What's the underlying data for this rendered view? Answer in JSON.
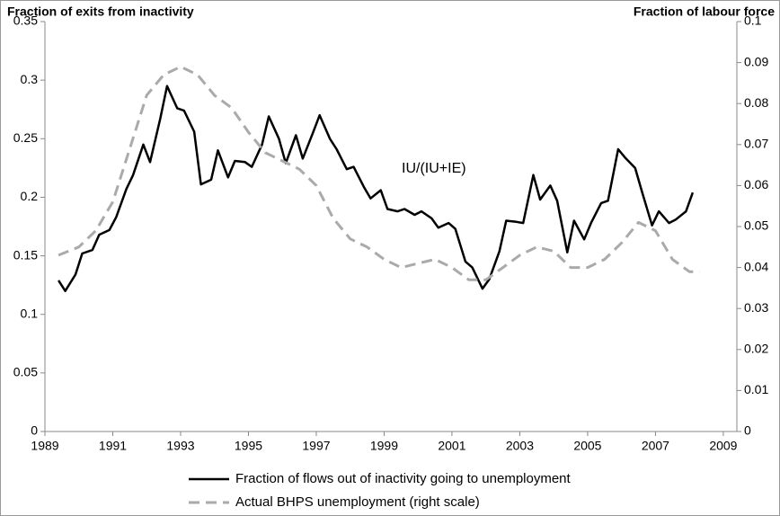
{
  "chart_data": {
    "type": "line",
    "y_title": "Fraction of exits from inactivity",
    "y2_title": "Fraction of labour force",
    "annotation": "IU/(IU+IE)",
    "xlim": [
      1989,
      2009.4
    ],
    "xticks": [
      1989,
      1991,
      1993,
      1995,
      1997,
      1999,
      2001,
      2003,
      2005,
      2007,
      2009
    ],
    "ylim": [
      0,
      0.35
    ],
    "yticks": [
      0,
      0.05,
      0.1,
      0.15,
      0.2,
      0.25,
      0.3,
      0.35
    ],
    "y2lim": [
      0,
      0.1
    ],
    "y2ticks": [
      0,
      0.01,
      0.02,
      0.03,
      0.04,
      0.05,
      0.06,
      0.07,
      0.08,
      0.09,
      0.1
    ],
    "grid": false,
    "legend": "bottom",
    "series": [
      {
        "name": "Fraction of flows out of inactivity going to unemployment",
        "color": "#000000",
        "dash": false,
        "x": [
          1989.4,
          1989.6,
          1989.9,
          1990.1,
          1990.4,
          1990.6,
          1990.9,
          1991.1,
          1991.4,
          1991.6,
          1991.9,
          1992.1,
          1992.4,
          1992.6,
          1992.9,
          1993.1,
          1993.4,
          1993.6,
          1993.9,
          1994.1,
          1994.4,
          1994.6,
          1994.9,
          1995.1,
          1995.4,
          1995.6,
          1995.9,
          1996.1,
          1996.4,
          1996.6,
          1996.9,
          1997.1,
          1997.4,
          1997.6,
          1997.9,
          1998.1,
          1998.4,
          1998.6,
          1998.9,
          1999.1,
          1999.4,
          1999.6,
          1999.9,
          2000.1,
          2000.4,
          2000.6,
          2000.9,
          2001.1,
          2001.4,
          2001.6,
          2001.9,
          2002.1,
          2002.4,
          2002.6,
          2002.9,
          2003.1,
          2003.4,
          2003.6,
          2003.9,
          2004.1,
          2004.4,
          2004.6,
          2004.9,
          2005.1,
          2005.4,
          2005.6,
          2005.9,
          2006.1,
          2006.4,
          2006.6,
          2006.9,
          2007.1,
          2007.4,
          2007.6,
          2007.9,
          2008.1
        ],
        "values": [
          0.129,
          0.12,
          0.134,
          0.152,
          0.155,
          0.168,
          0.172,
          0.183,
          0.207,
          0.219,
          0.245,
          0.23,
          0.267,
          0.295,
          0.276,
          0.274,
          0.256,
          0.211,
          0.215,
          0.24,
          0.217,
          0.231,
          0.23,
          0.226,
          0.245,
          0.269,
          0.25,
          0.229,
          0.253,
          0.233,
          0.255,
          0.27,
          0.25,
          0.241,
          0.224,
          0.226,
          0.209,
          0.199,
          0.206,
          0.19,
          0.188,
          0.19,
          0.185,
          0.188,
          0.182,
          0.174,
          0.178,
          0.173,
          0.145,
          0.14,
          0.122,
          0.13,
          0.154,
          0.18,
          0.179,
          0.178,
          0.219,
          0.198,
          0.21,
          0.197,
          0.153,
          0.18,
          0.164,
          0.178,
          0.195,
          0.197,
          0.241,
          0.234,
          0.225,
          0.205,
          0.176,
          0.188,
          0.178,
          0.181,
          0.188,
          0.204
        ]
      },
      {
        "name": "Actual BHPS unemployment (right scale)",
        "color": "#aaaaaa",
        "dash": true,
        "axis": "y2",
        "x": [
          1989.4,
          1990,
          1990.5,
          1991,
          1991.5,
          1992,
          1992.5,
          1993,
          1993.5,
          1994,
          1994.5,
          1995,
          1995.5,
          1996,
          1996.5,
          1997,
          1997.5,
          1998,
          1998.5,
          1999,
          1999.5,
          2000,
          2000.5,
          2001,
          2001.5,
          2002,
          2002.5,
          2003,
          2003.5,
          2004,
          2004.5,
          2005,
          2005.5,
          2006,
          2006.5,
          2007,
          2007.5,
          2008,
          2008.3
        ],
        "values": [
          0.043,
          0.045,
          0.049,
          0.056,
          0.069,
          0.082,
          0.087,
          0.089,
          0.087,
          0.082,
          0.079,
          0.073,
          0.068,
          0.066,
          0.064,
          0.06,
          0.052,
          0.047,
          0.045,
          0.042,
          0.04,
          0.041,
          0.042,
          0.04,
          0.037,
          0.037,
          0.04,
          0.043,
          0.045,
          0.044,
          0.04,
          0.04,
          0.042,
          0.046,
          0.051,
          0.049,
          0.042,
          0.039,
          0.039
        ]
      }
    ]
  }
}
